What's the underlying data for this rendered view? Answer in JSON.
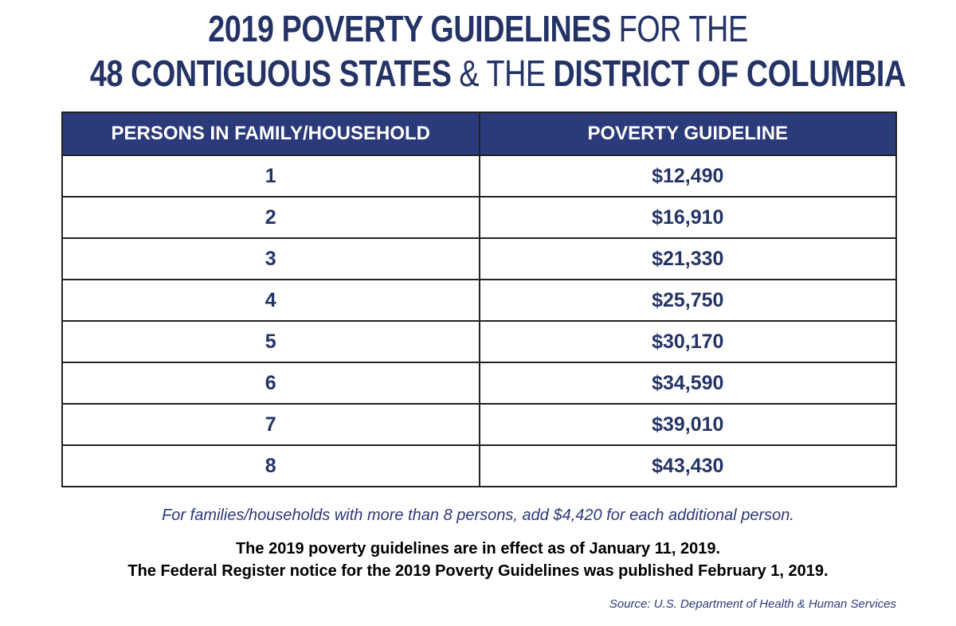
{
  "title": {
    "lines": [
      [
        {
          "text": "2019 POVERTY GUIDELINES",
          "bold": true
        },
        {
          "text": "FOR THE",
          "bold": false
        }
      ],
      [
        {
          "text": "48 CONTIGUOUS STATES",
          "bold": true
        },
        {
          "text": "& THE",
          "bold": false
        },
        {
          "text": "DISTRICT OF COLUMBIA",
          "bold": true
        }
      ]
    ]
  },
  "table": {
    "columns": [
      "PERSONS IN FAMILY/HOUSEHOLD",
      "POVERTY GUIDELINE"
    ],
    "rows": [
      [
        1,
        "$12,490"
      ],
      [
        2,
        "$16,910"
      ],
      [
        3,
        "$21,330"
      ],
      [
        4,
        "$25,750"
      ],
      [
        5,
        "$30,170"
      ],
      [
        6,
        "$34,590"
      ],
      [
        7,
        "$39,010"
      ],
      [
        8,
        "$43,430"
      ]
    ]
  },
  "footnote": "For families/households with more than 8 persons, add $4,420 for each additional person.",
  "notes": [
    "The 2019 poverty guidelines are in effect as of January 11, 2019.",
    "The Federal Register notice for the 2019 Poverty Guidelines was published February 1, 2019."
  ],
  "source": "Source: U.S. Department of Health & Human Services"
}
